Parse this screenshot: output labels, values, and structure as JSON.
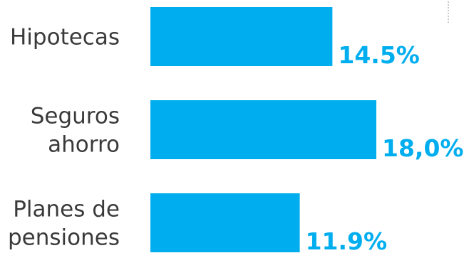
{
  "chart_data": {
    "type": "bar",
    "orientation": "horizontal",
    "categories": [
      [
        "Hipotecas"
      ],
      [
        "Seguros",
        "ahorro"
      ],
      [
        "Planes de",
        "pensiones"
      ]
    ],
    "values": [
      14.5,
      18.0,
      11.9
    ],
    "value_labels": [
      "14.5%",
      "18,0%",
      "11.9%"
    ],
    "xlim": [
      0,
      18.0
    ],
    "grid": false,
    "legend": "none",
    "colors": {
      "bar": "#00AEEF",
      "value_label": "#00AEEF",
      "category_label": "#3A3A3A"
    }
  }
}
